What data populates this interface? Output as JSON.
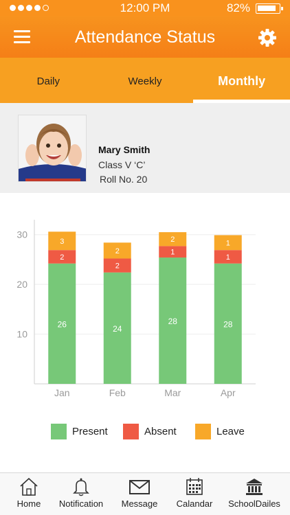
{
  "status_bar": {
    "time": "12:00 PM",
    "battery": "82%"
  },
  "header": {
    "title": "Attendance Status"
  },
  "tabs": [
    {
      "label": "Daily",
      "active": false
    },
    {
      "label": "Weekly",
      "active": false
    },
    {
      "label": "Monthly",
      "active": true
    }
  ],
  "student": {
    "name": "Mary Smith",
    "class": "Class V ‘C’",
    "roll": "Roll No. 20"
  },
  "chart_data": {
    "type": "bar",
    "stacked": true,
    "categories": [
      "Jan",
      "Feb",
      "Mar",
      "Apr"
    ],
    "series": [
      {
        "name": "Present",
        "color": "#77c878",
        "values": [
          26,
          24,
          28,
          28
        ]
      },
      {
        "name": "Absent",
        "color": "#ef5a44",
        "values": [
          2,
          2,
          1,
          1
        ]
      },
      {
        "name": "Leave",
        "color": "#f8a829",
        "values": [
          3,
          2,
          2,
          1
        ]
      }
    ],
    "yticks": [
      10,
      20,
      30
    ],
    "ylim": [
      0,
      33
    ],
    "grid": true,
    "legend": "bottom",
    "present_bar_tops": [
      24.2,
      22.4,
      25.4,
      24.2
    ],
    "absent_bar_tops": [
      26.9,
      25.2,
      27.7,
      26.9
    ],
    "leave_bar_tops": [
      30.6,
      28.4,
      30.5,
      29.9
    ]
  },
  "legend": [
    "Present",
    "Absent",
    "Leave"
  ],
  "bottom_nav": [
    {
      "label": "Home",
      "icon": "home-icon"
    },
    {
      "label": "Notification",
      "icon": "bell-icon"
    },
    {
      "label": "Message",
      "icon": "envelope-icon"
    },
    {
      "label": "Calandar",
      "icon": "calendar-icon"
    },
    {
      "label": "SchoolDailes",
      "icon": "school-icon"
    }
  ]
}
